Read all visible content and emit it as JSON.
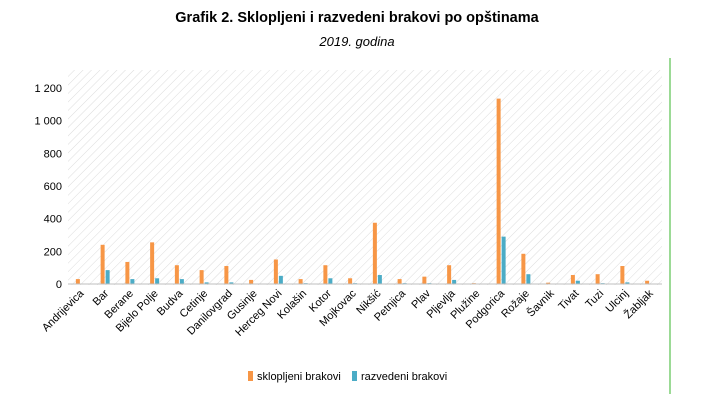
{
  "chart_data": {
    "type": "bar",
    "title": "Grafik 2. Sklopljeni i razvedeni brakovi po opštinama",
    "subtitle": "2019. godina",
    "xlabel": "",
    "ylabel": "",
    "ylim": [
      0,
      1200
    ],
    "yticks": [
      0,
      200,
      400,
      600,
      800,
      1000,
      1200
    ],
    "ytick_labels": [
      "0",
      "200",
      "400",
      "600",
      "800",
      "1 000",
      "1 200"
    ],
    "grid": false,
    "legend_position": "bottom",
    "categories": [
      "Andrijevica",
      "Bar",
      "Berane",
      "Bijelo Polje",
      "Budva",
      "Cetinje",
      "Danilovgrad",
      "Gusinje",
      "Herceg Novi",
      "Kolašin",
      "Kotor",
      "Mojkovac",
      "Nikšić",
      "Petnjica",
      "Plav",
      "Pljevlja",
      "Plužine",
      "Podgorica",
      "Rožaje",
      "Šavnik",
      "Tivat",
      "Tuzi",
      "Ulcinj",
      "Žabljak"
    ],
    "series": [
      {
        "name": "sklopljeni brakovi",
        "color": "#f79646",
        "values": [
          30,
          240,
          135,
          255,
          115,
          85,
          110,
          25,
          150,
          30,
          115,
          35,
          375,
          30,
          45,
          115,
          5,
          1135,
          185,
          8,
          55,
          60,
          110,
          20
        ]
      },
      {
        "name": "razvedeni brakovi",
        "color": "#4bacc6",
        "values": [
          3,
          85,
          30,
          35,
          30,
          10,
          10,
          2,
          50,
          5,
          35,
          5,
          55,
          5,
          5,
          25,
          1,
          290,
          60,
          1,
          20,
          5,
          10,
          2
        ]
      }
    ]
  }
}
